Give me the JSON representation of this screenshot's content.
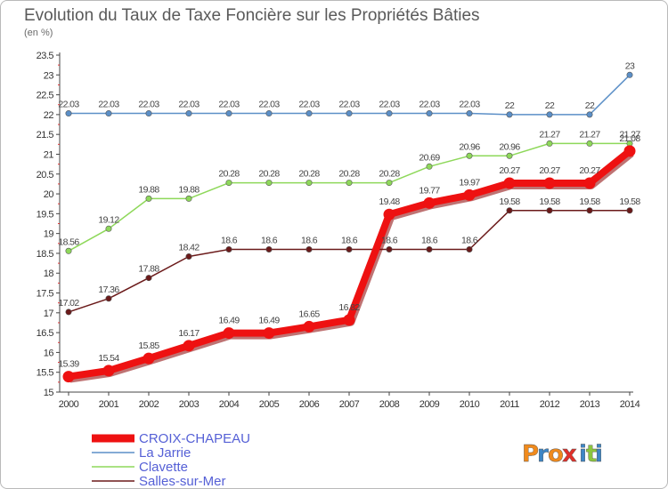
{
  "chart_data": {
    "type": "line",
    "title": "Evolution du Taux de Taxe Foncière sur les Propriétés Bâties",
    "subtitle": "(en %)",
    "xlabel": "",
    "ylabel": "",
    "ylim": [
      15,
      23.5
    ],
    "yticks": [
      "15",
      "15.5",
      "16",
      "16.5",
      "17",
      "17.5",
      "18",
      "18.5",
      "19",
      "19.5",
      "20",
      "20.5",
      "21",
      "21.5",
      "22",
      "22.5",
      "23",
      "23.5"
    ],
    "categories": [
      "2000",
      "2001",
      "2002",
      "2003",
      "2004",
      "2005",
      "2006",
      "2007",
      "2008",
      "2009",
      "2010",
      "2011",
      "2012",
      "2013",
      "2014"
    ],
    "series": [
      {
        "name": "CROIX-CHAPEAU",
        "color": "#ee1111",
        "values": [
          15.39,
          15.54,
          15.85,
          16.17,
          16.49,
          16.49,
          16.65,
          16.82,
          19.48,
          19.77,
          19.97,
          20.27,
          20.27,
          20.27,
          21.08
        ],
        "labels": [
          "15.39",
          "15.54",
          "15.85",
          "16.17",
          "16.49",
          "16.49",
          "16.65",
          "16.82",
          "19.48",
          "19.77",
          "19.97",
          "20.27",
          "20.27",
          "20.27",
          "21.08"
        ]
      },
      {
        "name": "La Jarrie",
        "color": "#5b8fc7",
        "values": [
          22.03,
          22.03,
          22.03,
          22.03,
          22.03,
          22.03,
          22.03,
          22.03,
          22.03,
          22.03,
          22.03,
          22,
          22,
          22,
          23
        ],
        "labels": [
          "22.03",
          "22.03",
          "22.03",
          "22.03",
          "22.03",
          "22.03",
          "22.03",
          "22.03",
          "22.03",
          "22.03",
          "22.03",
          "22",
          "22",
          "22",
          "23"
        ]
      },
      {
        "name": "Clavette",
        "color": "#8ed85a",
        "values": [
          18.56,
          19.12,
          19.88,
          19.88,
          20.28,
          20.28,
          20.28,
          20.28,
          20.28,
          20.69,
          20.96,
          20.96,
          21.27,
          21.27,
          21.27
        ],
        "labels": [
          "18.56",
          "19.12",
          "19.88",
          "19.88",
          "20.28",
          "20.28",
          "20.28",
          "20.28",
          "20.28",
          "20.69",
          "20.96",
          "20.96",
          "21.27",
          "21.27",
          "21.27"
        ]
      },
      {
        "name": "Salles-sur-Mer",
        "color": "#6b1a1a",
        "values": [
          17.02,
          17.36,
          17.88,
          18.42,
          18.6,
          18.6,
          18.6,
          18.6,
          18.6,
          18.6,
          18.6,
          19.58,
          19.58,
          19.58,
          19.58
        ],
        "labels": [
          "17.02",
          "17.36",
          "17.88",
          "18.42",
          "18.6",
          "18.6",
          "18.6",
          "18.6",
          "18.6",
          "18.6",
          "18.6",
          "19.58",
          "19.58",
          "19.58",
          "19.58"
        ]
      }
    ],
    "legend": [
      "CROIX-CHAPEAU",
      "La Jarrie",
      "Clavette",
      "Salles-sur-Mer"
    ],
    "grid": false
  },
  "brand": {
    "logo_letters": [
      "P",
      "r",
      "o",
      "x",
      "i",
      "t",
      "i"
    ],
    "logo_colors": [
      "#f08a1c",
      "#3d86c6",
      "#f08a1c",
      "#e0302a",
      "#3d86c6",
      "#8cc63f",
      "#3d86c6"
    ]
  }
}
